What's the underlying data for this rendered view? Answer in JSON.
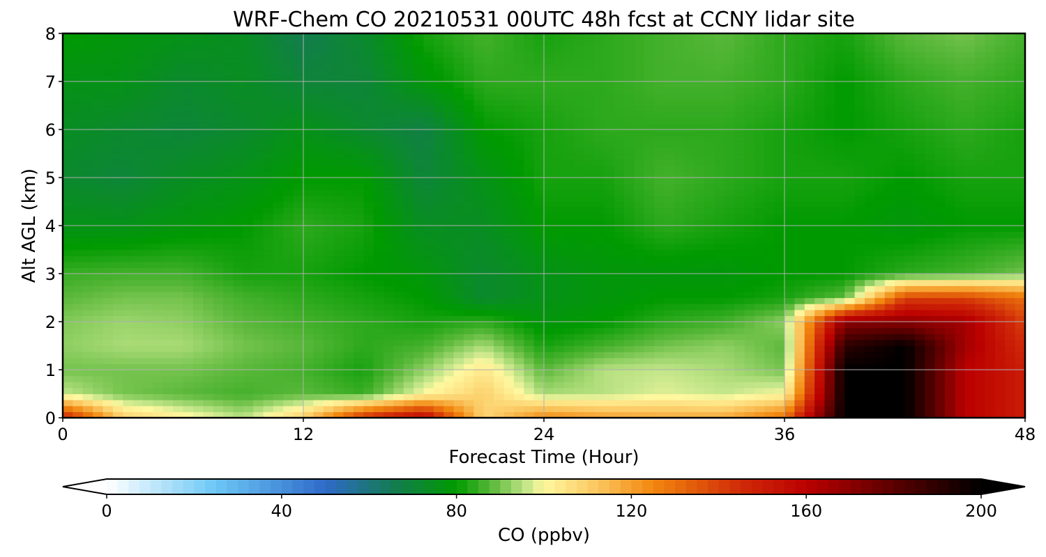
{
  "chart_data": {
    "type": "heatmap",
    "title": "WRF-Chem CO  20210531 00UTC 48h fcst at CCNY lidar site",
    "xlabel": "Forecast Time (Hour)",
    "ylabel": "Alt AGL (km)",
    "xlim": [
      0,
      48
    ],
    "ylim": [
      0,
      8
    ],
    "xticks": [
      0,
      12,
      24,
      36,
      48
    ],
    "yticks": [
      0,
      1,
      2,
      3,
      4,
      5,
      6,
      7,
      8
    ],
    "grid": true,
    "x": [
      0,
      3,
      6,
      9,
      12,
      15,
      18,
      21,
      24,
      27,
      30,
      33,
      36,
      39,
      42,
      45,
      48
    ],
    "y": [
      0,
      0.5,
      1,
      1.5,
      2,
      2.5,
      3,
      4,
      5,
      6,
      7,
      8
    ],
    "values": [
      [
        150,
        110,
        102,
        95,
        110,
        145,
        160,
        108,
        125,
        120,
        118,
        118,
        130,
        200,
        200,
        160,
        150
      ],
      [
        96,
        90,
        88,
        86,
        88,
        85,
        100,
        110,
        94,
        95,
        98,
        96,
        100,
        200,
        200,
        160,
        150
      ],
      [
        90,
        90,
        90,
        88,
        86,
        82,
        92,
        104,
        88,
        95,
        96,
        94,
        90,
        200,
        200,
        160,
        150
      ],
      [
        92,
        94,
        94,
        90,
        88,
        84,
        86,
        94,
        82,
        86,
        90,
        92,
        88,
        190,
        200,
        165,
        145
      ],
      [
        91,
        93,
        92,
        88,
        86,
        84,
        82,
        84,
        78,
        80,
        84,
        86,
        92,
        170,
        170,
        165,
        140
      ],
      [
        88,
        90,
        90,
        86,
        84,
        82,
        80,
        72,
        76,
        78,
        80,
        80,
        82,
        88,
        140,
        140,
        130
      ],
      [
        85,
        86,
        86,
        82,
        82,
        80,
        78,
        72,
        76,
        78,
        78,
        78,
        80,
        80,
        84,
        86,
        90
      ],
      [
        76,
        76,
        78,
        80,
        84,
        82,
        74,
        74,
        80,
        80,
        84,
        82,
        80,
        80,
        78,
        80,
        80
      ],
      [
        72,
        70,
        74,
        76,
        80,
        80,
        70,
        76,
        82,
        82,
        86,
        84,
        82,
        82,
        80,
        82,
        82
      ],
      [
        74,
        72,
        70,
        72,
        76,
        72,
        68,
        80,
        82,
        84,
        84,
        84,
        82,
        80,
        82,
        84,
        82
      ],
      [
        76,
        76,
        72,
        74,
        70,
        70,
        78,
        84,
        84,
        84,
        86,
        86,
        84,
        80,
        84,
        86,
        84
      ],
      [
        80,
        78,
        76,
        74,
        66,
        72,
        82,
        86,
        82,
        84,
        86,
        88,
        84,
        82,
        88,
        90,
        86
      ]
    ],
    "colorbar": {
      "label": "CO  (ppbv)",
      "min": 0,
      "max": 200,
      "ticks": [
        0,
        40,
        80,
        120,
        160,
        200
      ],
      "extend": "both",
      "orientation": "horizontal"
    },
    "colors": {
      "stops": [
        [
          0,
          "#ffffff"
        ],
        [
          25,
          "#6cc7f5"
        ],
        [
          50,
          "#2f6ac9"
        ],
        [
          65,
          "#157a55"
        ],
        [
          80,
          "#009a00"
        ],
        [
          88,
          "#5ab83a"
        ],
        [
          96,
          "#c4e68a"
        ],
        [
          100,
          "#fff8a0"
        ],
        [
          110,
          "#fcd06c"
        ],
        [
          125,
          "#f2870e"
        ],
        [
          145,
          "#d02a08"
        ],
        [
          160,
          "#bb0000"
        ],
        [
          180,
          "#5a0000"
        ],
        [
          200,
          "#000000"
        ]
      ]
    }
  }
}
